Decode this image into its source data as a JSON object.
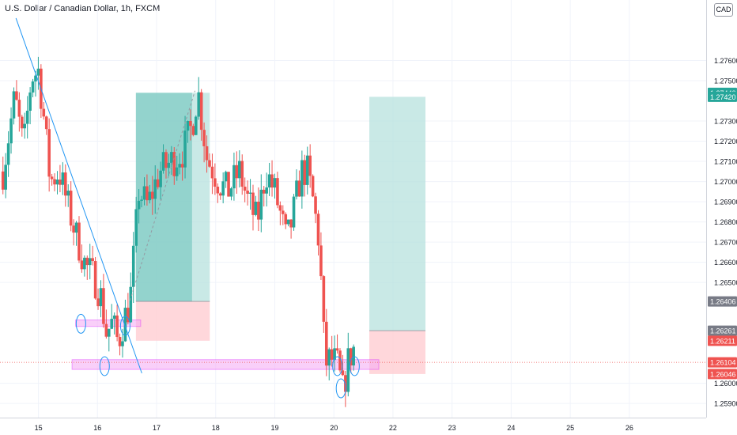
{
  "header": {
    "title": "U.S. Dollar / Canadian Dollar, 1h, FXCM",
    "currency": "CAD"
  },
  "colors": {
    "up": "#26a69a",
    "down": "#ef5350",
    "grid": "#f0f3fa",
    "trendline": "#2196f3",
    "zone_border": "#e040fb",
    "zone_fill": "#f5a9f5",
    "profit": "#b2dfdb",
    "profit_dark": "#80cbc4",
    "loss": "#ffcdd2",
    "axis_text": "#131722"
  },
  "chart_data": {
    "type": "candlestick",
    "title": "U.S. Dollar / Canadian Dollar, 1h, FXCM",
    "ylim": [
      1.2583,
      1.279
    ],
    "xlim": [
      14.35,
      26.3
    ],
    "y_ticks": [
      "1.25900",
      "1.26000",
      "1.26500",
      "1.26600",
      "1.26700",
      "1.26800",
      "1.26900",
      "1.27000",
      "1.27100",
      "1.27200",
      "1.27300",
      "1.27500",
      "1.27600"
    ],
    "x_ticks": [
      "15",
      "16",
      "17",
      "18",
      "19",
      "20",
      "22",
      "23",
      "24",
      "25",
      "26"
    ],
    "price_labels": [
      {
        "value": 1.2744,
        "text": "1.27440",
        "bg": "#26a69a"
      },
      {
        "value": 1.2742,
        "text": "1.27420",
        "bg": "#26a69a"
      },
      {
        "value": 1.26406,
        "text": "1.26406",
        "bg": "#787b86"
      },
      {
        "value": 1.26261,
        "text": "1.26261",
        "bg": "#787b86"
      },
      {
        "value": 1.26211,
        "text": "1.26211",
        "bg": "#ef5350"
      },
      {
        "value": 1.26104,
        "text": "1.26104",
        "bg": "#ef5350"
      },
      {
        "value": 1.26046,
        "text": "1.26046",
        "bg": "#ef5350"
      }
    ],
    "path": [
      [
        14.4,
        1.2705
      ],
      [
        14.6,
        1.2742
      ],
      [
        14.75,
        1.2716
      ],
      [
        14.88,
        1.2752
      ],
      [
        15.0,
        1.2755
      ],
      [
        15.08,
        1.2735
      ],
      [
        15.2,
        1.27
      ],
      [
        15.35,
        1.2705
      ],
      [
        15.5,
        1.2688
      ],
      [
        15.65,
        1.2672
      ],
      [
        15.8,
        1.2658
      ],
      [
        15.95,
        1.2652
      ],
      [
        16.05,
        1.2644
      ],
      [
        16.15,
        1.2625
      ],
      [
        16.25,
        1.263
      ],
      [
        16.35,
        1.262
      ],
      [
        16.45,
        1.2632
      ],
      [
        16.55,
        1.264
      ],
      [
        16.7,
        1.2695
      ],
      [
        16.85,
        1.2688
      ],
      [
        17.05,
        1.2705
      ],
      [
        17.25,
        1.271
      ],
      [
        17.45,
        1.2715
      ],
      [
        17.6,
        1.2728
      ],
      [
        17.7,
        1.2745
      ],
      [
        17.85,
        1.2712
      ],
      [
        18.05,
        1.27
      ],
      [
        18.2,
        1.2695
      ],
      [
        18.4,
        1.2705
      ],
      [
        18.55,
        1.269
      ],
      [
        18.7,
        1.268
      ],
      [
        18.85,
        1.2705
      ],
      [
        19.0,
        1.2695
      ],
      [
        19.1,
        1.2683
      ],
      [
        19.2,
        1.267
      ],
      [
        19.3,
        1.2682
      ],
      [
        19.45,
        1.2705
      ],
      [
        19.55,
        1.2705
      ],
      [
        19.65,
        1.269
      ],
      [
        19.75,
        1.267
      ],
      [
        19.85,
        1.261
      ],
      [
        19.95,
        1.2612
      ],
      [
        20.05,
        1.261
      ],
      [
        20.15,
        1.2596
      ],
      [
        20.25,
        1.2612
      ],
      [
        20.35,
        1.2618
      ]
    ],
    "trendlines": [
      {
        "x1": 14.62,
        "y1": 1.2781,
        "x2": 16.75,
        "y2": 1.2605,
        "style": "solid"
      },
      {
        "x1": 16.55,
        "y1": 1.2641,
        "x2": 17.65,
        "y2": 1.2745,
        "style": "dashed"
      }
    ],
    "zones": [
      {
        "x1": 15.63,
        "x2": 16.73,
        "y1": 1.26282,
        "y2": 1.26314
      },
      {
        "x1": 15.57,
        "x2": 20.76,
        "y1": 1.26069,
        "y2": 1.26117
      }
    ],
    "positions": [
      {
        "x1": 16.65,
        "x2": 17.9,
        "entry": 1.26406,
        "target": 1.2744,
        "stop": 1.26211,
        "filled_until": 17.6
      },
      {
        "x1": 20.6,
        "x2": 21.55,
        "entry": 1.26261,
        "target": 1.2742,
        "stop": 1.26046,
        "filled_until": 20.6
      }
    ],
    "circles": [
      {
        "x": 15.72,
        "y": 1.26295
      },
      {
        "x": 16.12,
        "y": 1.26085
      },
      {
        "x": 16.47,
        "y": 1.26285
      },
      {
        "x": 20.06,
        "y": 1.26085
      },
      {
        "x": 20.12,
        "y": 1.25975
      },
      {
        "x": 20.35,
        "y": 1.26085
      }
    ],
    "hline": {
      "value": 1.26104,
      "style": "dotted"
    }
  }
}
